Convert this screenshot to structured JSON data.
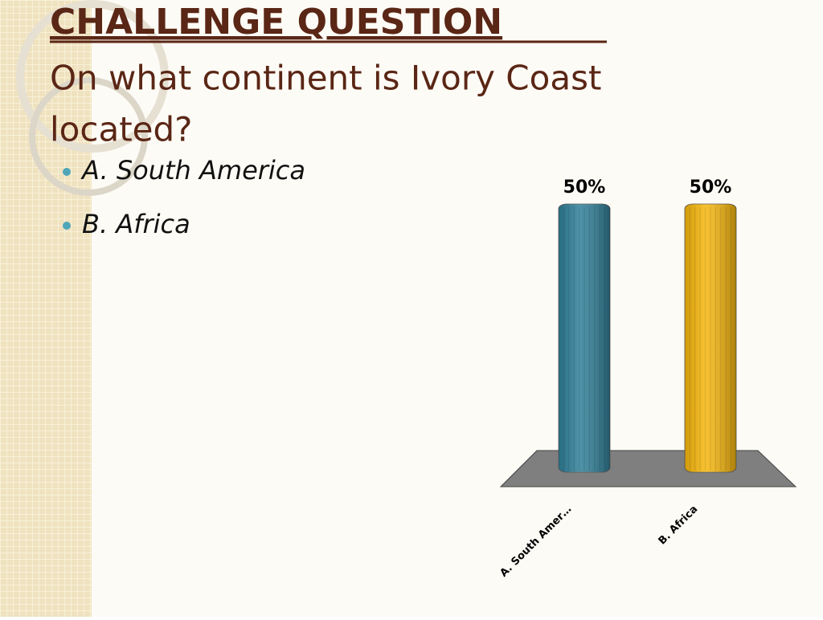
{
  "slide": {
    "title": "CHALLENGE QUESTION",
    "question_lines": [
      "On what continent is Ivory Coast",
      "located?"
    ],
    "bullets": [
      "A.  South America",
      "B.  Africa"
    ]
  },
  "chart_data": {
    "type": "bar",
    "categories": [
      "A.  South Amer…",
      "B.  Africa"
    ],
    "values": [
      50,
      50
    ],
    "value_labels": [
      "50%",
      "50%"
    ],
    "colors": [
      "#2f7f98",
      "#f6b60c"
    ]
  }
}
